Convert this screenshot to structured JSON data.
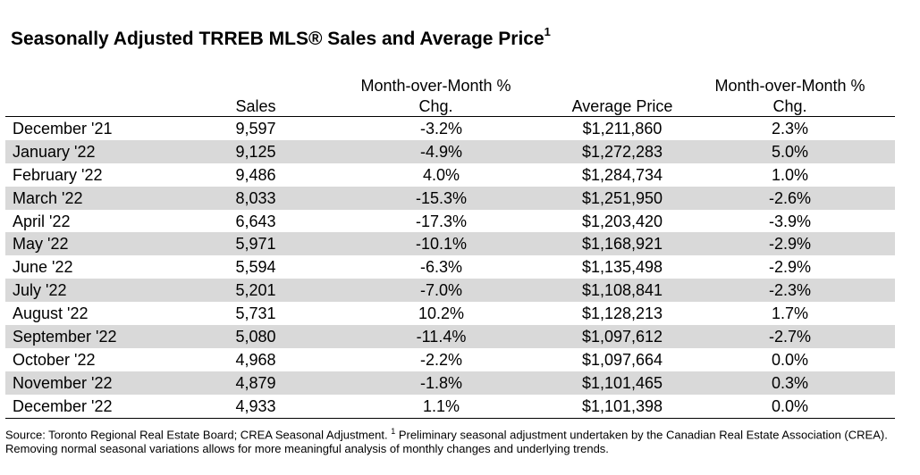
{
  "title": {
    "text": "Seasonally Adjusted TRREB MLS® Sales and Average Price",
    "superscript": "1"
  },
  "columns": {
    "sales": "Sales",
    "mom_sales_line1": "Month-over-Month %",
    "mom_sales_line2": "Chg.",
    "avg_price": "Average Price",
    "mom_price_line1": "Month-over-Month %",
    "mom_price_line2": "Chg."
  },
  "rows": [
    {
      "month": "December '21",
      "sales": "9,597",
      "mom_sales": "-3.2%",
      "price": "$1,211,860",
      "mom_price": "2.3%"
    },
    {
      "month": "January '22",
      "sales": "9,125",
      "mom_sales": "-4.9%",
      "price": "$1,272,283",
      "mom_price": "5.0%"
    },
    {
      "month": "February '22",
      "sales": "9,486",
      "mom_sales": "4.0%",
      "price": "$1,284,734",
      "mom_price": "1.0%"
    },
    {
      "month": "March '22",
      "sales": "8,033",
      "mom_sales": "-15.3%",
      "price": "$1,251,950",
      "mom_price": "-2.6%"
    },
    {
      "month": "April '22",
      "sales": "6,643",
      "mom_sales": "-17.3%",
      "price": "$1,203,420",
      "mom_price": "-3.9%"
    },
    {
      "month": "May '22",
      "sales": "5,971",
      "mom_sales": "-10.1%",
      "price": "$1,168,921",
      "mom_price": "-2.9%"
    },
    {
      "month": "June '22",
      "sales": "5,594",
      "mom_sales": "-6.3%",
      "price": "$1,135,498",
      "mom_price": "-2.9%"
    },
    {
      "month": "July '22",
      "sales": "5,201",
      "mom_sales": "-7.0%",
      "price": "$1,108,841",
      "mom_price": "-2.3%"
    },
    {
      "month": "August '22",
      "sales": "5,731",
      "mom_sales": "10.2%",
      "price": "$1,128,213",
      "mom_price": "1.7%"
    },
    {
      "month": "September '22",
      "sales": "5,080",
      "mom_sales": "-11.4%",
      "price": "$1,097,612",
      "mom_price": "-2.7%"
    },
    {
      "month": "October '22",
      "sales": "4,968",
      "mom_sales": "-2.2%",
      "price": "$1,097,664",
      "mom_price": "0.0%"
    },
    {
      "month": "November '22",
      "sales": "4,879",
      "mom_sales": "-1.8%",
      "price": "$1,101,465",
      "mom_price": "0.3%"
    },
    {
      "month": "December '22",
      "sales": "4,933",
      "mom_sales": "1.1%",
      "price": "$1,101,398",
      "mom_price": "0.0%"
    }
  ],
  "footnote": {
    "part1": "Source: Toronto Regional Real Estate Board; CREA Seasonal Adjustment. ",
    "superscript": "1",
    "part2": " Preliminary seasonal adjustment undertaken by the Canadian Real Estate Association (CREA).  Removing normal seasonal variations allows for more meaningful analysis of monthly changes and underlying trends."
  },
  "colors": {
    "stripe": "#d9d9d9",
    "rule": "#000000"
  }
}
